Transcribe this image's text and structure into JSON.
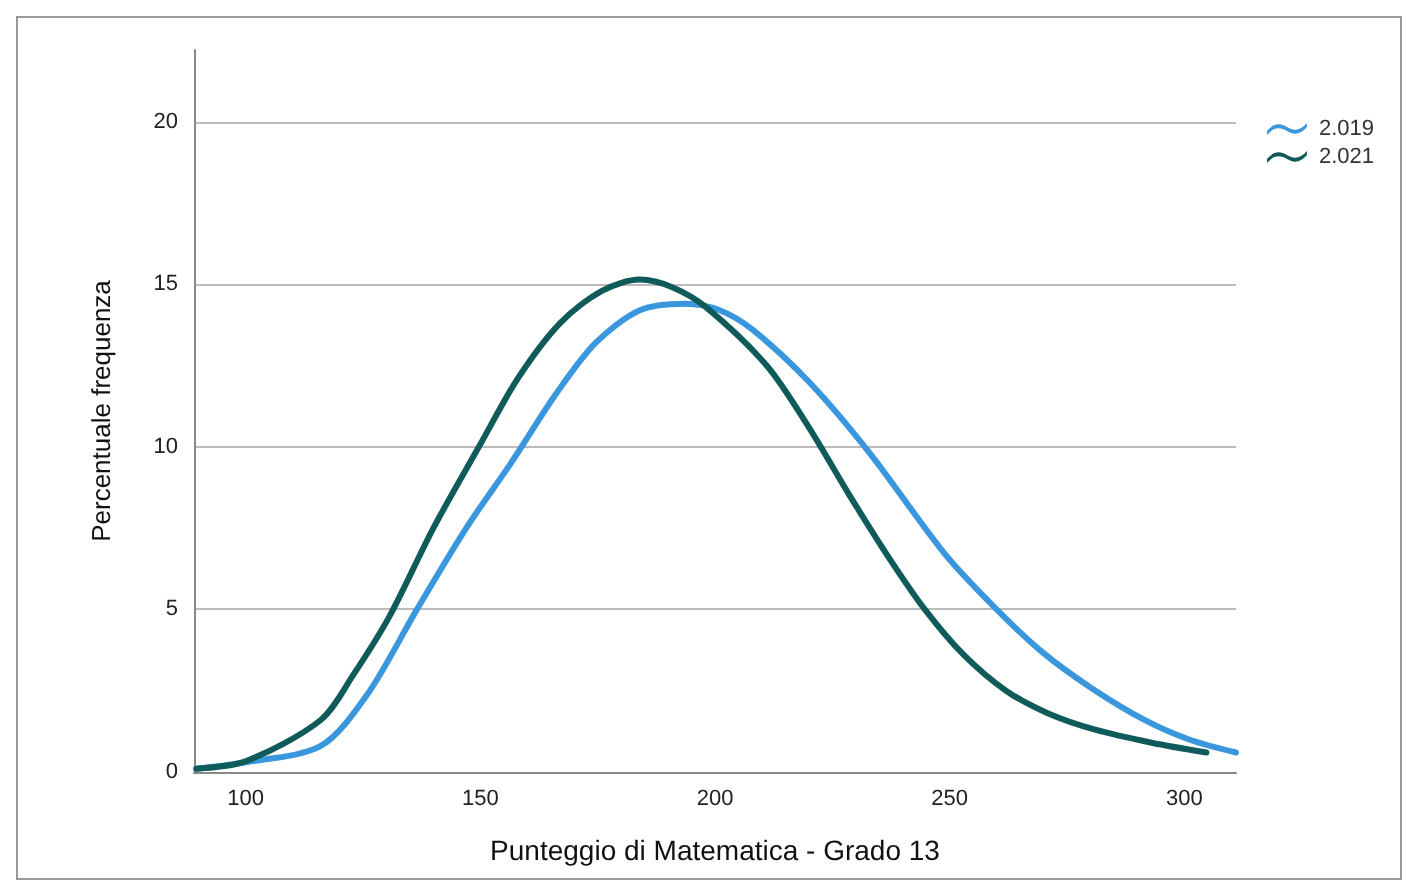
{
  "chart_data": {
    "type": "line",
    "xlabel": "Punteggio di Matematica - Grado 13",
    "ylabel": "Percentuale frequenza",
    "xlim": [
      89,
      311
    ],
    "xticks": [
      100,
      150,
      200,
      250,
      300
    ],
    "ylim": [
      0,
      22.2
    ],
    "yticks": [
      0,
      5,
      10,
      15,
      20
    ],
    "grid": "y",
    "legend": "top right",
    "marker": "none",
    "line_style": "solid",
    "series": [
      {
        "name": "2.019",
        "color": "#3a97dd",
        "x": [
          89.5,
          100,
          116,
          126,
          136.5,
          147,
          157,
          166,
          174.6,
          184,
          193.6,
          201,
          208,
          220,
          233,
          249,
          260,
          269.6,
          280,
          291.5,
          301,
          311
        ],
        "values": [
          0.1,
          0.3,
          0.8,
          2.4,
          5.0,
          7.5,
          9.6,
          11.6,
          13.2,
          14.2,
          14.4,
          14.2,
          13.6,
          12.0,
          9.8,
          6.7,
          5.0,
          3.7,
          2.6,
          1.6,
          1.0,
          0.6
        ]
      },
      {
        "name": "2.021",
        "color": "#0e5b59",
        "x": [
          89.5,
          100,
          116,
          123,
          130.7,
          140,
          149.7,
          158,
          167,
          176,
          184,
          191,
          198,
          211,
          220,
          228.7,
          237,
          244.7,
          253,
          262,
          271,
          281,
          293,
          304.7
        ],
        "values": [
          0.1,
          0.33,
          1.6,
          3.0,
          4.8,
          7.5,
          10.0,
          12.1,
          13.8,
          14.8,
          15.14,
          14.9,
          14.3,
          12.5,
          10.6,
          8.5,
          6.6,
          5.0,
          3.6,
          2.5,
          1.8,
          1.3,
          0.9,
          0.6
        ]
      }
    ]
  }
}
